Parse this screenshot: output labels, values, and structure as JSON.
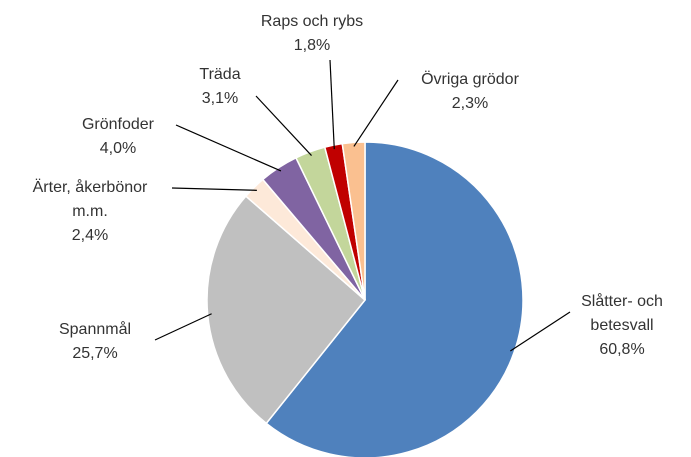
{
  "chart_data": {
    "type": "pie",
    "categories": [
      "Slåtter- och\nbetesvall",
      "Spannmål",
      "Ärter, åkerbönor\nm.m.",
      "Grönfoder",
      "Träda",
      "Raps och rybs",
      "Övriga grödor"
    ],
    "values": [
      60.8,
      25.7,
      2.4,
      4.0,
      3.1,
      1.8,
      2.3
    ],
    "value_labels": [
      "60,8%",
      "25,7%",
      "2,4%",
      "4,0%",
      "3,1%",
      "1,8%",
      "2,3%"
    ],
    "colors": [
      "#4f81bd",
      "#c0c0c0",
      "#fde9d9",
      "#8064a2",
      "#c3d69b",
      "#c00000",
      "#fac090"
    ]
  }
}
